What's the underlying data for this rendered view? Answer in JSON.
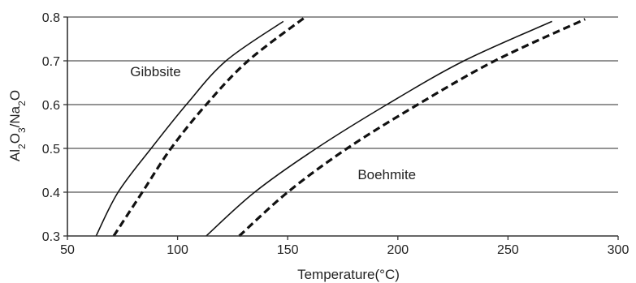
{
  "chart_data": {
    "type": "line",
    "xlabel": "Temperature(°C)",
    "ylabel": "Al2O3/Na2O",
    "xlim": [
      50,
      300
    ],
    "ylim": [
      0.3,
      0.8
    ],
    "xticks": [
      50,
      100,
      150,
      200,
      250,
      300
    ],
    "yticks": [
      0.3,
      0.4,
      0.5,
      0.6,
      0.7,
      0.8
    ],
    "grid": "horizontal",
    "series": [
      {
        "style": "solid",
        "color": "#111111",
        "points": [
          [
            63,
            0.3
          ],
          [
            73,
            0.4
          ],
          [
            88,
            0.5
          ],
          [
            104,
            0.6
          ],
          [
            122,
            0.7
          ],
          [
            148,
            0.79
          ]
        ]
      },
      {
        "style": "dashed",
        "color": "#111111",
        "points": [
          [
            71,
            0.3
          ],
          [
            84,
            0.4
          ],
          [
            97,
            0.5
          ],
          [
            113,
            0.6
          ],
          [
            132,
            0.7
          ],
          [
            158,
            0.8
          ]
        ]
      },
      {
        "style": "solid",
        "color": "#111111",
        "points": [
          [
            113,
            0.3
          ],
          [
            135,
            0.4
          ],
          [
            163,
            0.5
          ],
          [
            195,
            0.6
          ],
          [
            230,
            0.7
          ],
          [
            270,
            0.79
          ]
        ]
      },
      {
        "style": "dashed",
        "color": "#111111",
        "points": [
          [
            128,
            0.3
          ],
          [
            150,
            0.4
          ],
          [
            177,
            0.5
          ],
          [
            209,
            0.6
          ],
          [
            244,
            0.7
          ],
          [
            285,
            0.795
          ]
        ]
      }
    ],
    "annotations": [
      {
        "text": "Gibbsite",
        "x": 90,
        "y": 0.665
      },
      {
        "text": "Boehmite",
        "x": 195,
        "y": 0.43
      }
    ]
  }
}
